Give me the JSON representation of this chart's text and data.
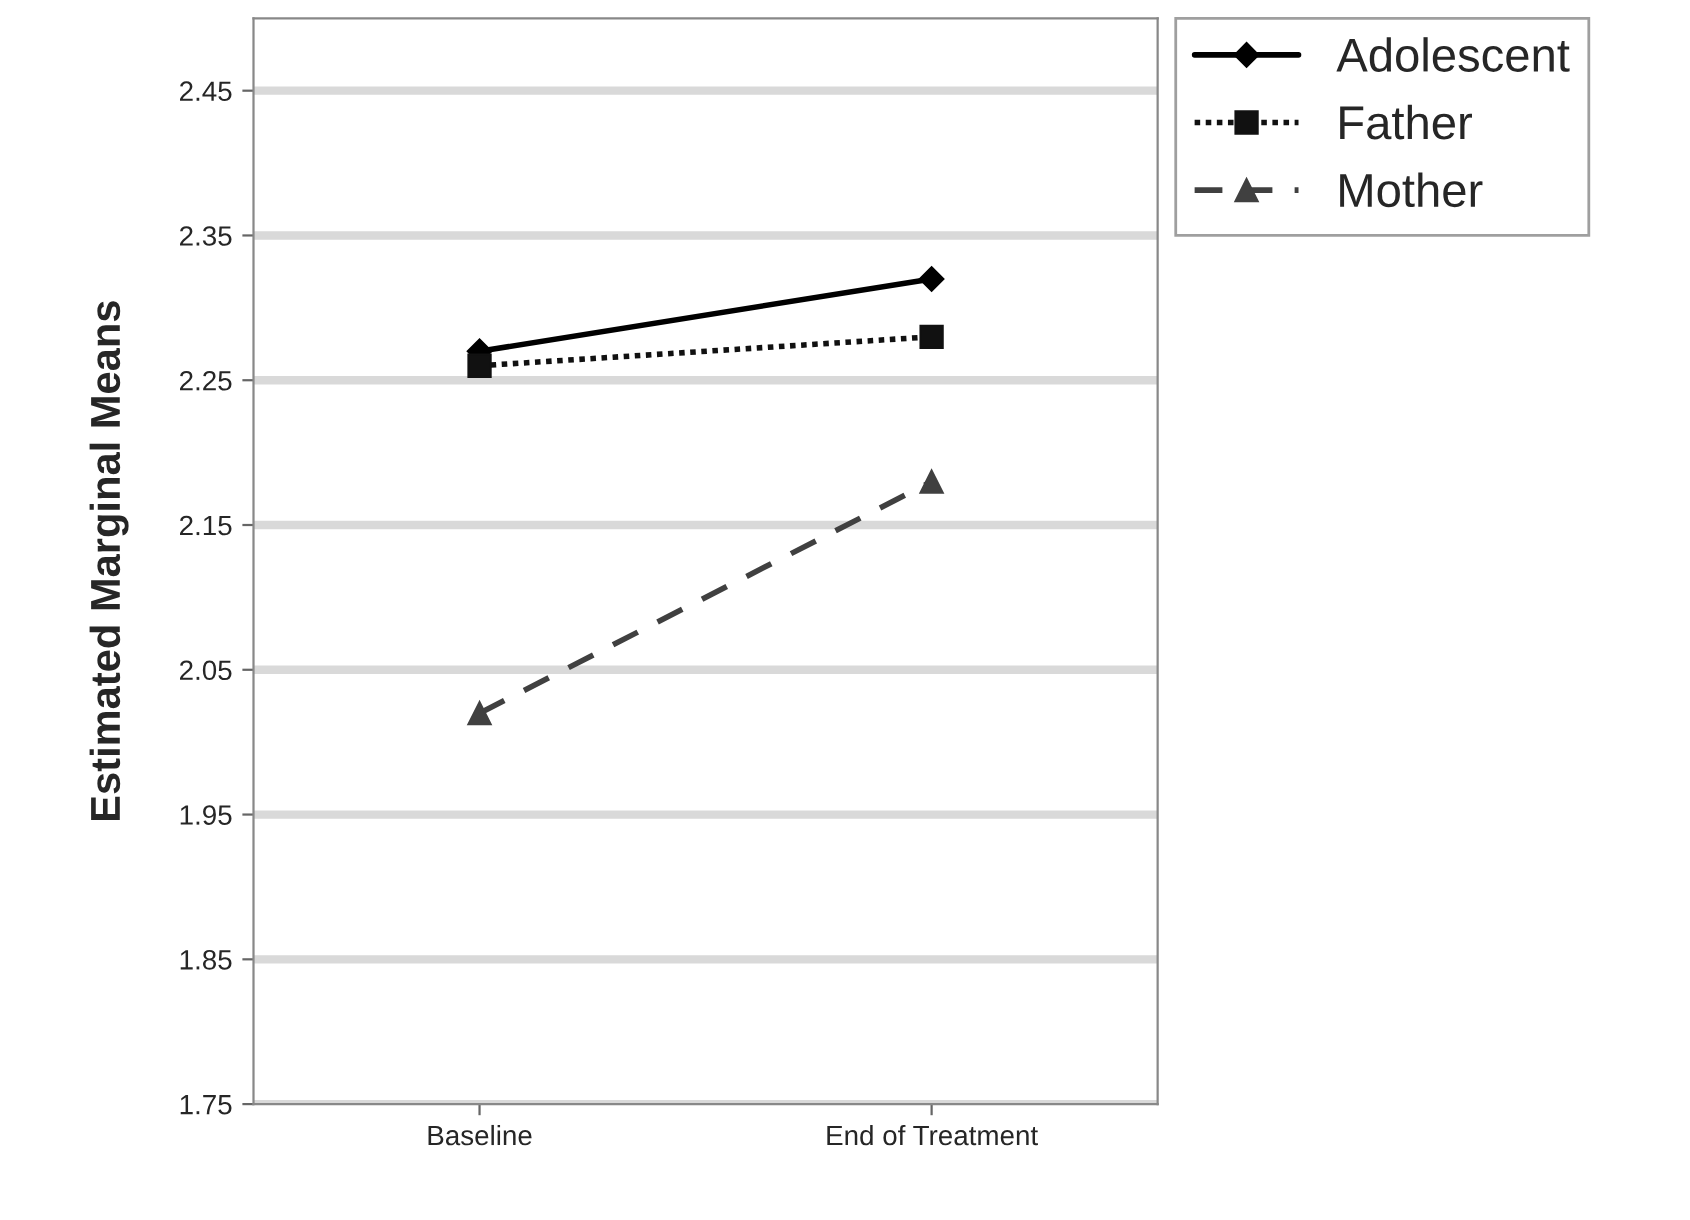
{
  "chart_data": {
    "type": "line",
    "ylabel": "Estimated Marginal Means",
    "categories": [
      "Baseline",
      "End of Treatment"
    ],
    "series": [
      {
        "name": "Adolescent",
        "color": "#000000",
        "values": [
          2.27,
          2.32
        ],
        "marker": "diamond",
        "line_style": "solid"
      },
      {
        "name": "Father",
        "color": "#111111",
        "values": [
          2.26,
          2.28
        ],
        "marker": "square",
        "line_style": "dotted"
      },
      {
        "name": "Mother",
        "color": "#404040",
        "values": [
          2.02,
          2.18
        ],
        "marker": "triangle",
        "line_style": "dashed"
      }
    ],
    "ylim": [
      1.75,
      2.5
    ],
    "yticks": [
      1.75,
      1.85,
      1.95,
      2.05,
      2.15,
      2.25,
      2.35,
      2.45
    ],
    "grid": "y",
    "legend": "top right"
  }
}
